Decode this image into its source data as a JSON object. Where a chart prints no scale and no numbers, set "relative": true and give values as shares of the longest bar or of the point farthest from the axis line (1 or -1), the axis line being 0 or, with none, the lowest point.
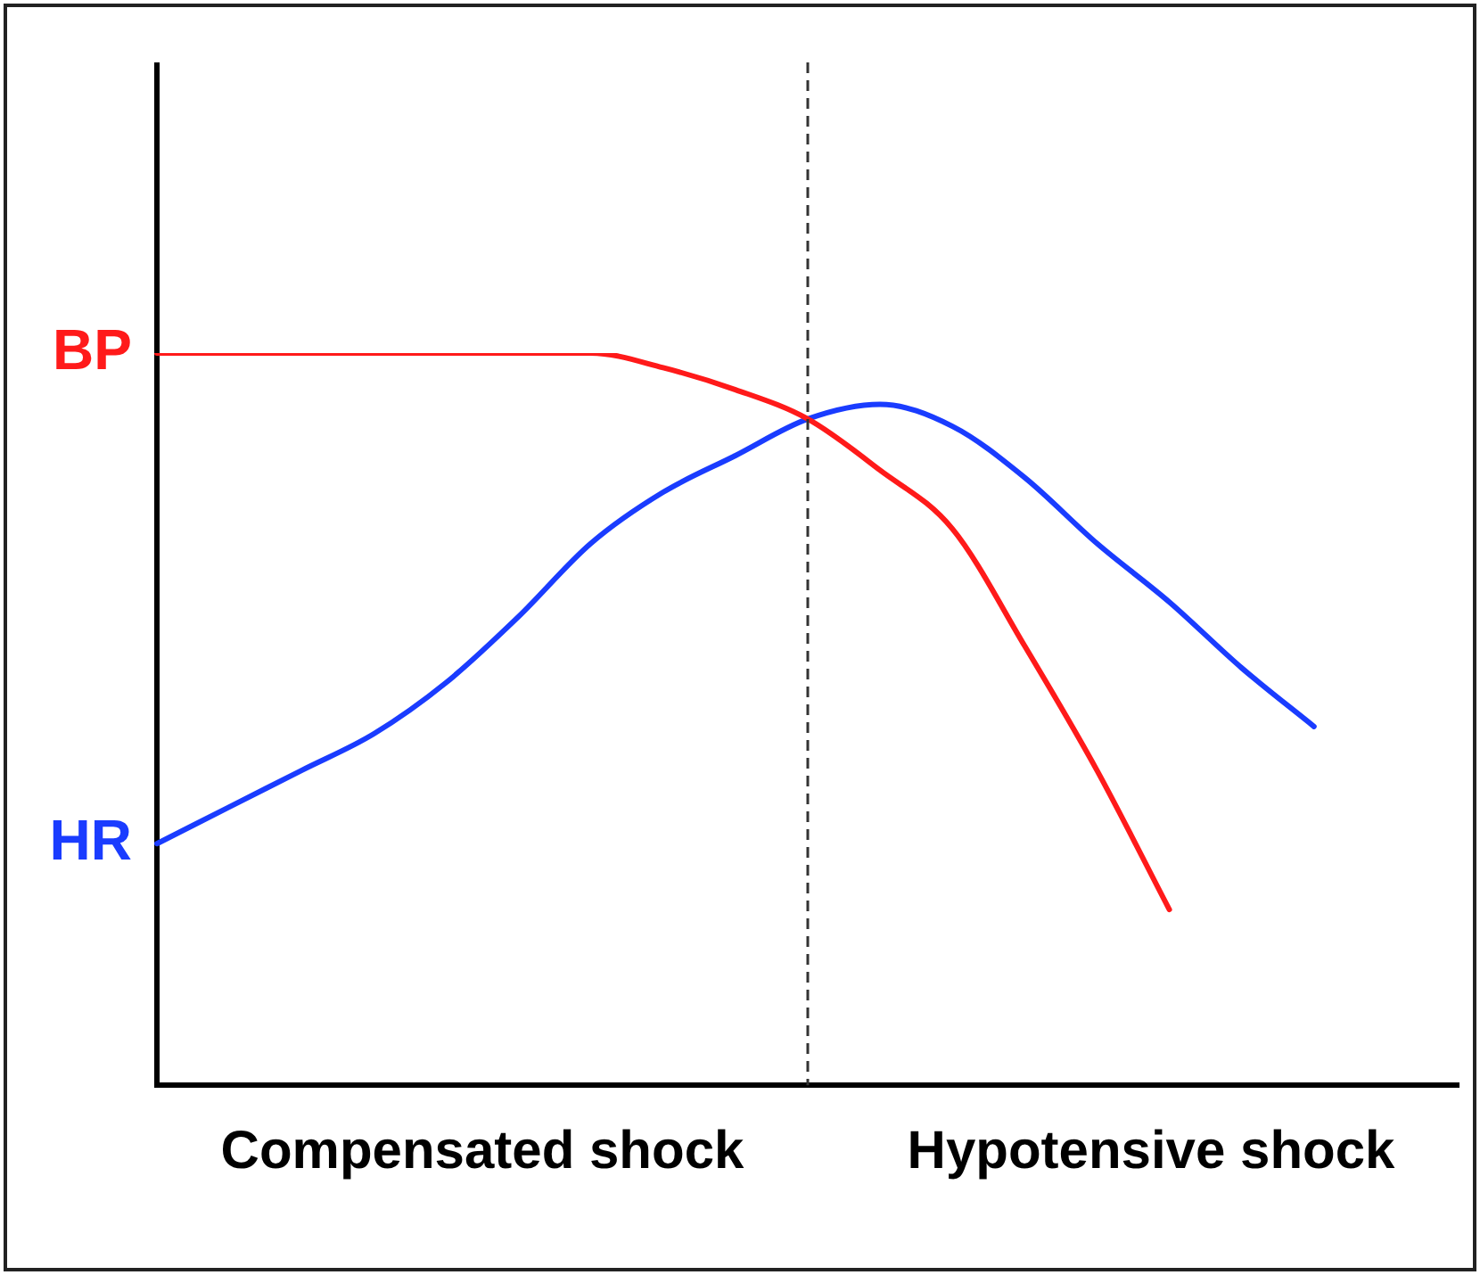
{
  "chart_data": {
    "type": "line",
    "relative": true,
    "categories": [
      null,
      null,
      null,
      null,
      null,
      null,
      null,
      null,
      null,
      null,
      null,
      null,
      null,
      null,
      null,
      null,
      null,
      null,
      null
    ],
    "series": [
      {
        "name": "BP",
        "color": "#ff1a1a",
        "values": [
          1.0,
          1.0,
          1.0,
          1.0,
          1.0,
          1.0,
          1.0,
          0.98,
          0.95,
          0.91,
          0.84,
          0.76,
          0.6,
          0.43,
          0.24,
          null,
          null,
          null,
          null
        ]
      },
      {
        "name": "HR",
        "color": "#1a3cff",
        "values": [
          0.33,
          0.38,
          0.43,
          0.48,
          0.55,
          0.64,
          0.74,
          0.81,
          0.86,
          0.91,
          0.93,
          0.9,
          0.83,
          0.74,
          0.66,
          0.57,
          0.49,
          null,
          null
        ]
      }
    ],
    "annotations": [
      "Compensated shock",
      "Hypotensive shock"
    ],
    "grid": false,
    "legend": false,
    "marker": "none",
    "line_style": "solid"
  }
}
